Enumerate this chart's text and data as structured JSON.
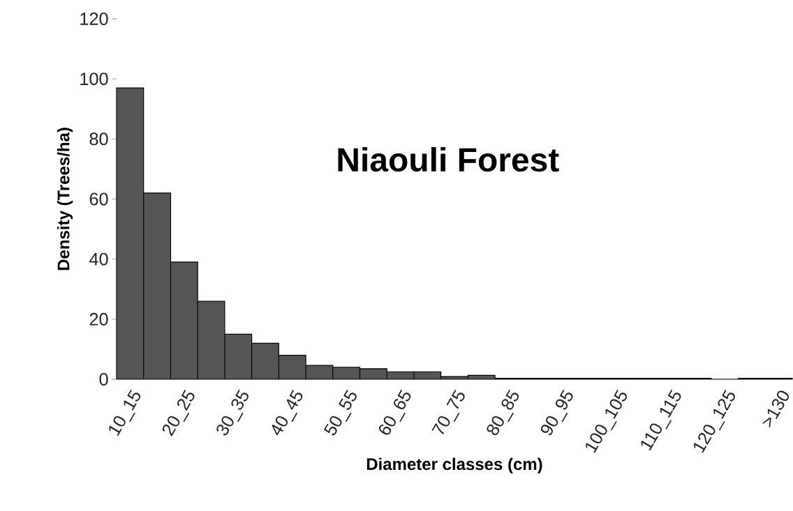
{
  "chart_data": {
    "type": "bar",
    "title": "Niaouli Forest",
    "xlabel": "Diameter classes (cm)",
    "ylabel": "Density (Trees/ha)",
    "categories": [
      "10_15",
      null,
      "20_25",
      null,
      "30_35",
      null,
      "40_45",
      null,
      "50_55",
      null,
      "60_65",
      null,
      "70_75",
      null,
      "80_85",
      null,
      "90_95",
      null,
      "100_105",
      null,
      "110_115",
      null,
      "120_125",
      null,
      ">130"
    ],
    "values": [
      97,
      62,
      39,
      26,
      15,
      12,
      8,
      4.6,
      4,
      3.5,
      2.5,
      2.5,
      0.9,
      1.3,
      0.3,
      0.3,
      0.3,
      0.3,
      0.3,
      0.3,
      0.3,
      0.3,
      0,
      0.3,
      0.3
    ],
    "color": "#555555",
    "ylim": [
      0,
      120
    ],
    "yticks": [
      0,
      20,
      40,
      60,
      80,
      100,
      120
    ]
  }
}
